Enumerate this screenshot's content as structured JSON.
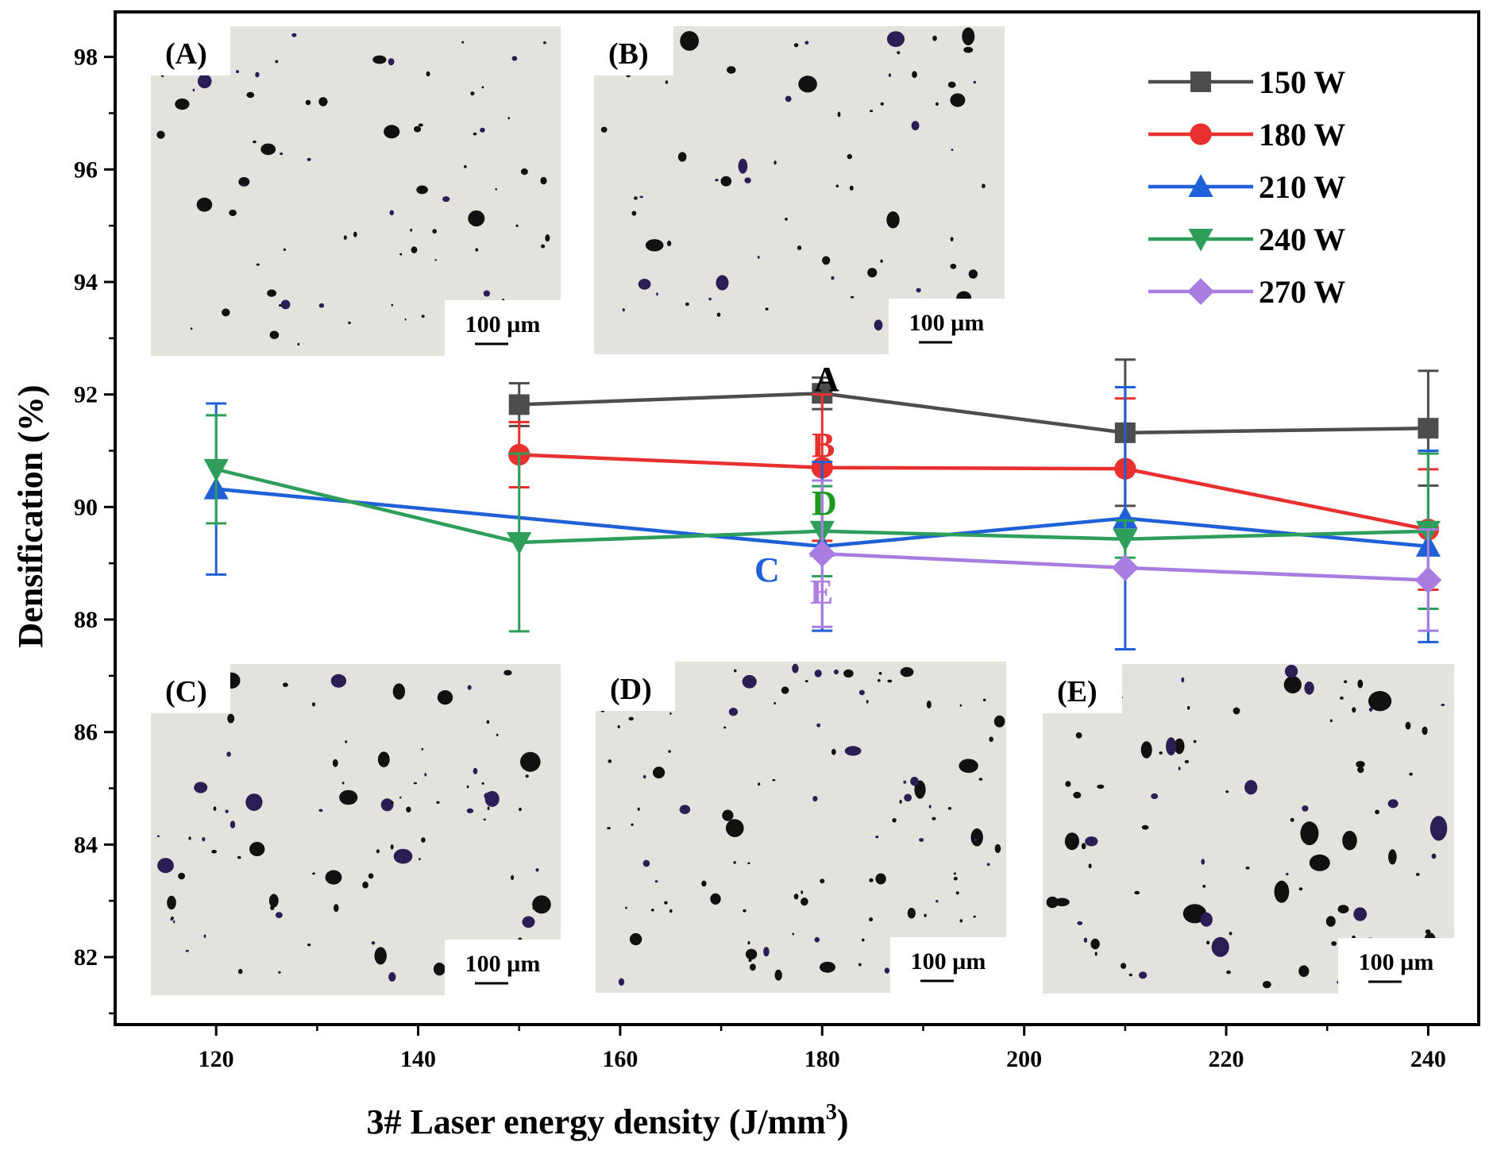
{
  "chart_data": {
    "type": "line",
    "title": "",
    "xlabel": "3# Laser energy density (J/mm",
    "xlabel_sup": "3",
    "xlabel_end": ")",
    "ylabel": "Densification (%)",
    "xlim": [
      110,
      245
    ],
    "ylim": [
      80.8,
      98.8
    ],
    "xticks": [
      120,
      140,
      160,
      180,
      200,
      220,
      240
    ],
    "yticks": [
      82,
      84,
      86,
      88,
      90,
      92,
      94,
      96,
      98
    ],
    "series": [
      {
        "name": "150 W",
        "color": "#4d4d4d",
        "marker": "square",
        "x": [
          150,
          180,
          210,
          240
        ],
        "y": [
          91.82,
          92.02,
          91.32,
          91.4
        ],
        "err": [
          0.38,
          0.28,
          1.3,
          1.02
        ]
      },
      {
        "name": "180 W",
        "color": "#e8302f",
        "marker": "circle",
        "x": [
          150,
          180,
          210,
          240
        ],
        "y": [
          90.93,
          90.7,
          90.68,
          89.6
        ],
        "err": [
          0.58,
          1.3,
          1.25,
          1.07
        ]
      },
      {
        "name": "210 W",
        "color": "#1f5fd8",
        "marker": "triangle-up",
        "x": [
          120,
          180,
          210,
          240
        ],
        "y": [
          90.32,
          89.3,
          89.8,
          89.3
        ],
        "err": [
          1.52,
          1.5,
          2.33,
          1.7
        ]
      },
      {
        "name": "240 W",
        "color": "#2e9e5b",
        "marker": "triangle-down",
        "x": [
          120,
          150,
          180,
          210,
          240
        ],
        "y": [
          90.67,
          89.37,
          89.57,
          89.43,
          89.57
        ],
        "err": [
          0.96,
          1.58,
          0.8,
          0.33,
          1.38
        ]
      },
      {
        "name": "270 W",
        "color": "#a97de0",
        "marker": "diamond",
        "x": [
          180,
          210,
          240
        ],
        "y": [
          89.17,
          88.92,
          88.7
        ],
        "err": [
          1.3,
          0.0,
          0.9
        ]
      }
    ],
    "annotations": [
      {
        "text": "A",
        "color": "#000000"
      },
      {
        "text": "B",
        "color": "#e8302f"
      },
      {
        "text": "C",
        "color": "#1f5fd8"
      },
      {
        "text": "D",
        "color": "#1a9a1a"
      },
      {
        "text": "E",
        "color": "#b07ee0"
      }
    ],
    "legend_position": "top-right"
  },
  "insets": [
    {
      "label": "(A)",
      "scale": "100 µm"
    },
    {
      "label": "(B)",
      "scale": "100 µm"
    },
    {
      "label": "(C)",
      "scale": "100 µm"
    },
    {
      "label": "(D)",
      "scale": "100 µm"
    },
    {
      "label": "(E)",
      "scale": "100 µm"
    }
  ]
}
